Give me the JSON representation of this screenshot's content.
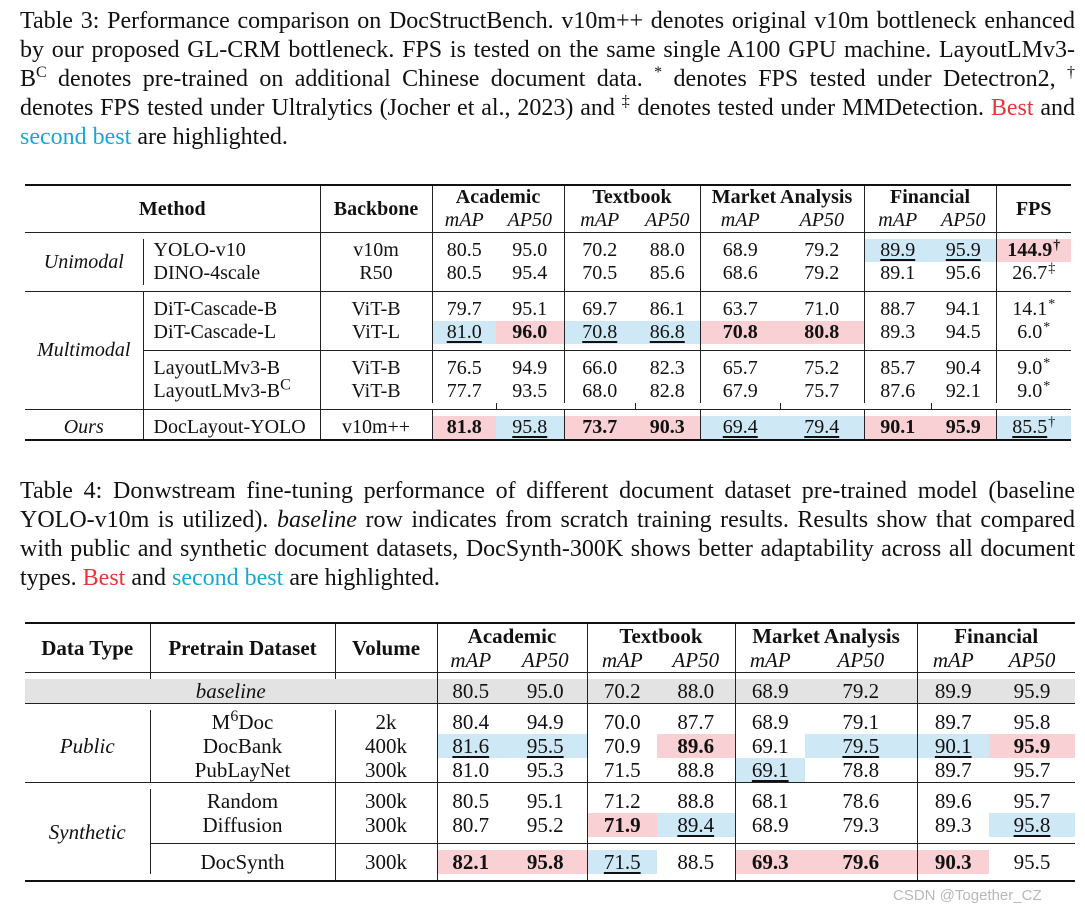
{
  "table3": {
    "caption": {
      "label": "Table 3:",
      "text1": "Performance comparison on DocStructBench. v10m++ denotes original v10m bottleneck enhanced by our proposed GL-CRM bottleneck. FPS is tested on the same single A100 GPU machine. LayoutLMv3-B",
      "sup_c": "C",
      "text2": " denotes pre-trained on additional Chinese document data. ",
      "sym_star": "*",
      "text3": " denotes FPS tested under Detectron2, ",
      "sym_dagger": "†",
      "text4": " denotes FPS tested under Ultralytics (Jocher et al., 2023) and ",
      "sym_ddagger": "‡",
      "text5": " denotes tested under MMDetection. ",
      "best": "Best",
      "and": " and ",
      "second": "second best",
      "tail": " are highlighted."
    },
    "headers": {
      "method": "Method",
      "backbone": "Backbone",
      "academic": "Academic",
      "textbook": "Textbook",
      "market": "Market Analysis",
      "financial": "Financial",
      "fps": "FPS",
      "map": "mAP",
      "ap50": "AP50"
    },
    "groups": {
      "unimodal": "Unimodal",
      "multimodal": "Multimodal",
      "ours": "Ours"
    },
    "rows": [
      {
        "method": "YOLO-v10",
        "backbone": "v10m",
        "v": [
          "80.5",
          "95.0",
          "70.2",
          "88.0",
          "68.9",
          "79.2",
          "89.9",
          "95.9"
        ],
        "fps": "144.9",
        "fps_sym": "†"
      },
      {
        "method": "DINO-4scale",
        "backbone": "R50",
        "v": [
          "80.5",
          "95.4",
          "70.5",
          "85.6",
          "68.6",
          "79.2",
          "89.1",
          "95.6"
        ],
        "fps": "26.7",
        "fps_sym": "‡"
      },
      {
        "method": "DiT-Cascade-B",
        "backbone": "ViT-B",
        "v": [
          "79.7",
          "95.1",
          "69.7",
          "86.1",
          "63.7",
          "71.0",
          "88.7",
          "94.1"
        ],
        "fps": "14.1",
        "fps_sym": "*"
      },
      {
        "method": "DiT-Cascade-L",
        "backbone": "ViT-L",
        "v": [
          "81.0",
          "96.0",
          "70.8",
          "86.8",
          "70.8",
          "80.8",
          "89.3",
          "94.5"
        ],
        "fps": "6.0",
        "fps_sym": "*"
      },
      {
        "method": "LayoutLMv3-B",
        "backbone": "ViT-B",
        "v": [
          "76.5",
          "94.9",
          "66.0",
          "82.3",
          "65.7",
          "75.2",
          "85.7",
          "90.4"
        ],
        "fps": "9.0",
        "fps_sym": "*"
      },
      {
        "method": "LayoutLMv3-B",
        "method_sup": "C",
        "backbone": "ViT-B",
        "v": [
          "77.7",
          "93.5",
          "68.0",
          "82.8",
          "67.9",
          "75.7",
          "87.6",
          "92.1"
        ],
        "fps": "9.0",
        "fps_sym": "*"
      },
      {
        "method": "DocLayout-YOLO",
        "backbone": "v10m++",
        "v": [
          "81.8",
          "95.8",
          "73.7",
          "90.3",
          "69.4",
          "79.4",
          "90.1",
          "95.9"
        ],
        "fps": "85.5",
        "fps_sym": "†"
      }
    ]
  },
  "table4": {
    "caption": {
      "label": "Table 4:",
      "text1": "Donwstream fine-tuning performance of different document dataset pre-trained model (baseline YOLO-v10m is utilized). ",
      "baseline_word": "baseline",
      "text2": " row indicates from scratch training results. Results show that compared with public and synthetic document datasets, DocSynth-300K shows better adaptability across all document types. ",
      "best": "Best",
      "and": " and ",
      "second": "second best",
      "tail": " are highlighted."
    },
    "headers": {
      "data_type": "Data Type",
      "pretrain": "Pretrain Dataset",
      "volume": "Volume",
      "academic": "Academic",
      "textbook": "Textbook",
      "market": "Market Analysis",
      "financial": "Financial",
      "map": "mAP",
      "ap50": "AP50"
    },
    "groups": {
      "public": "Public",
      "synthetic": "Synthetic"
    },
    "baseline": {
      "label": "baseline",
      "v": [
        "80.5",
        "95.0",
        "70.2",
        "88.0",
        "68.9",
        "79.2",
        "89.9",
        "95.9"
      ]
    },
    "rows": [
      {
        "name": "M",
        "name_sup": "6",
        "name_tail": "Doc",
        "volume": "2k",
        "v": [
          "80.4",
          "94.9",
          "70.0",
          "87.7",
          "68.9",
          "79.1",
          "89.7",
          "95.8"
        ]
      },
      {
        "name": "DocBank",
        "volume": "400k",
        "v": [
          "81.6",
          "95.5",
          "70.9",
          "89.6",
          "69.1",
          "79.5",
          "90.1",
          "95.9"
        ]
      },
      {
        "name": "PubLayNet",
        "volume": "300k",
        "v": [
          "81.0",
          "95.3",
          "71.5",
          "88.8",
          "69.1",
          "78.8",
          "89.7",
          "95.7"
        ]
      },
      {
        "name": "Random",
        "volume": "300k",
        "v": [
          "80.5",
          "95.1",
          "71.2",
          "88.8",
          "68.1",
          "78.6",
          "89.6",
          "95.7"
        ]
      },
      {
        "name": "Diffusion",
        "volume": "300k",
        "v": [
          "80.7",
          "95.2",
          "71.9",
          "89.4",
          "68.9",
          "79.3",
          "89.3",
          "95.8"
        ]
      },
      {
        "name": "DocSynth",
        "volume": "300k",
        "v": [
          "82.1",
          "95.8",
          "71.5",
          "88.5",
          "69.3",
          "79.6",
          "90.3",
          "95.5"
        ]
      }
    ]
  },
  "watermark": "CSDN @Together_CZ"
}
